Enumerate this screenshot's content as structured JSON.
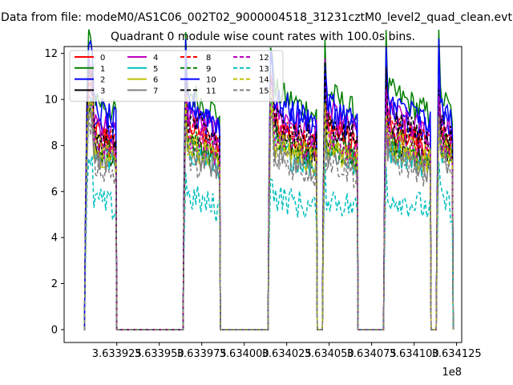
{
  "figure": {
    "suptitle": "Data from file: modeM0/AS1C06_002T02_9000004518_31231cztM0_level2_quad_clean.evt",
    "title": "Quadrant 0 module wise count rates with 100.0s bins."
  },
  "chart_data": {
    "type": "line",
    "title": "Quadrant 0 module wise count rates with 100.0s bins.",
    "xlabel": "",
    "ylabel": "",
    "x_offset_label": "1e8",
    "xlim": [
      363389400,
      363412800
    ],
    "ylim": [
      -0.56,
      12.3
    ],
    "xticks": [
      363392500,
      363395000,
      363397500,
      363400000,
      363402500,
      363405000,
      363407500,
      363410000,
      363412500
    ],
    "xtick_labels": [
      "3.633925",
      "3.633950",
      "3.633975",
      "3.634000",
      "3.634025",
      "3.634050",
      "3.634075",
      "3.634100",
      "3.634125"
    ],
    "yticks": [
      0,
      2,
      4,
      6,
      8,
      10,
      12
    ],
    "ytick_labels": [
      "0",
      "2",
      "4",
      "6",
      "8",
      "10",
      "12"
    ],
    "grid": false,
    "legend": {
      "placement": "top-left",
      "ncol": 4
    },
    "segments": [
      {
        "start": 363390600,
        "end": 363392500,
        "peak_at": 363390950
      },
      {
        "start": 363396400,
        "end": 363398600,
        "peak_at": 363396500
      },
      {
        "start": 363401400,
        "end": 363404300,
        "peak_at": 363401550
      },
      {
        "start": 363404600,
        "end": 363406700,
        "peak_at": 363404700
      },
      {
        "start": 363408200,
        "end": 363411000,
        "peak_at": 363408300
      },
      {
        "start": 363411300,
        "end": 363412300,
        "peak_at": 363411350
      }
    ],
    "gap_level": 0,
    "series": [
      {
        "name": "0",
        "color": "#ff0000",
        "dash": "solid",
        "level": 8.6
      },
      {
        "name": "1",
        "color": "#008000",
        "dash": "solid",
        "level": 10.0
      },
      {
        "name": "2",
        "color": "#0000ff",
        "dash": "solid",
        "level": 9.2
      },
      {
        "name": "3",
        "color": "#000000",
        "dash": "solid",
        "level": 8.1
      },
      {
        "name": "4",
        "color": "#bf00bf",
        "dash": "solid",
        "level": 9.1
      },
      {
        "name": "5",
        "color": "#00bfbf",
        "dash": "solid",
        "level": 7.6
      },
      {
        "name": "6",
        "color": "#bfbf00",
        "dash": "solid",
        "level": 7.8
      },
      {
        "name": "7",
        "color": "#808080",
        "dash": "solid",
        "level": 7.5
      },
      {
        "name": "8",
        "color": "#ff0000",
        "dash": "dashed",
        "level": 8.5
      },
      {
        "name": "9",
        "color": "#008000",
        "dash": "dashed",
        "level": 8.0
      },
      {
        "name": "10",
        "color": "#0000ff",
        "dash": "solid",
        "level": 9.6
      },
      {
        "name": "11",
        "color": "#000000",
        "dash": "dashed",
        "level": 8.8
      },
      {
        "name": "12",
        "color": "#bf00bf",
        "dash": "dashed",
        "level": 8.2
      },
      {
        "name": "13",
        "color": "#00bfbf",
        "dash": "dashed",
        "level": 5.6
      },
      {
        "name": "14",
        "color": "#bfbf00",
        "dash": "dashed",
        "level": 7.9
      },
      {
        "name": "15",
        "color": "#808080",
        "dash": "dashed",
        "level": 7.2
      }
    ]
  }
}
